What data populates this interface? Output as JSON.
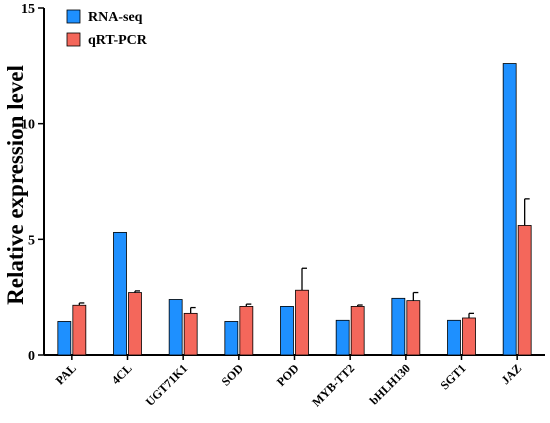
{
  "chart_data": {
    "type": "bar",
    "title": "",
    "xlabel": "",
    "ylabel": "Relative expression level",
    "ylim": [
      0,
      15
    ],
    "yticks": [
      0,
      5,
      10,
      15
    ],
    "categories": [
      "PAL",
      "4CL",
      "UGT71K1",
      "SOD",
      "POD",
      "MYB-TT2",
      "bHLH130",
      "SGT1",
      "JAZ"
    ],
    "series": [
      {
        "name": "RNA-seq",
        "color": "#1e90ff",
        "values": [
          1.45,
          5.3,
          2.4,
          1.45,
          2.1,
          1.5,
          2.45,
          1.5,
          12.6
        ],
        "errors": [
          0,
          0,
          0,
          0,
          0,
          0,
          0,
          0,
          0
        ]
      },
      {
        "name": "qRT-PCR",
        "color": "#f4675b",
        "values": [
          2.15,
          2.7,
          1.8,
          2.1,
          2.8,
          2.1,
          2.35,
          1.6,
          5.6
        ],
        "errors": [
          0.1,
          0.07,
          0.25,
          0.1,
          0.95,
          0.06,
          0.35,
          0.2,
          1.15
        ]
      }
    ],
    "legend": "top-left",
    "grid": false
  }
}
